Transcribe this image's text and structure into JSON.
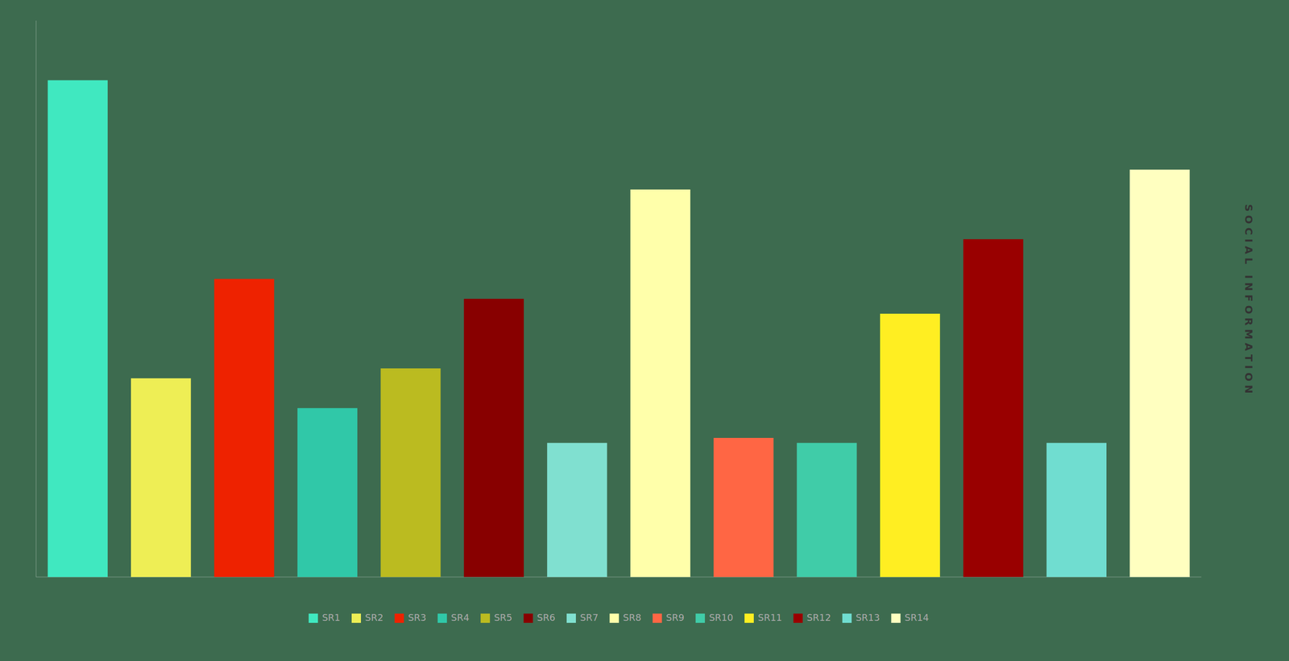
{
  "chart_data": {
    "type": "bar",
    "categories": [
      "SR1",
      "SR2",
      "SR3",
      "SR4",
      "SR5",
      "SR6",
      "SR7",
      "SR8",
      "SR9",
      "SR10",
      "SR11",
      "SR12",
      "SR13",
      "SR14"
    ],
    "values": [
      100,
      40,
      60,
      34,
      42,
      56,
      27,
      78,
      28,
      27,
      53,
      68,
      27,
      82
    ],
    "colors": [
      "#40E8C0",
      "#EEEE55",
      "#EE2200",
      "#30C8A8",
      "#BBBB20",
      "#880000",
      "#80E0D0",
      "#FFFFAA",
      "#FF6644",
      "#40CCA8",
      "#FFEE22",
      "#990000",
      "#70DDD0",
      "#FFFFC0"
    ],
    "ylabel": "S O C I A L   I N F O R M A T I O N",
    "ylim": [
      0,
      112
    ],
    "tick_labels": false,
    "grid": false,
    "legend": "bottom"
  }
}
